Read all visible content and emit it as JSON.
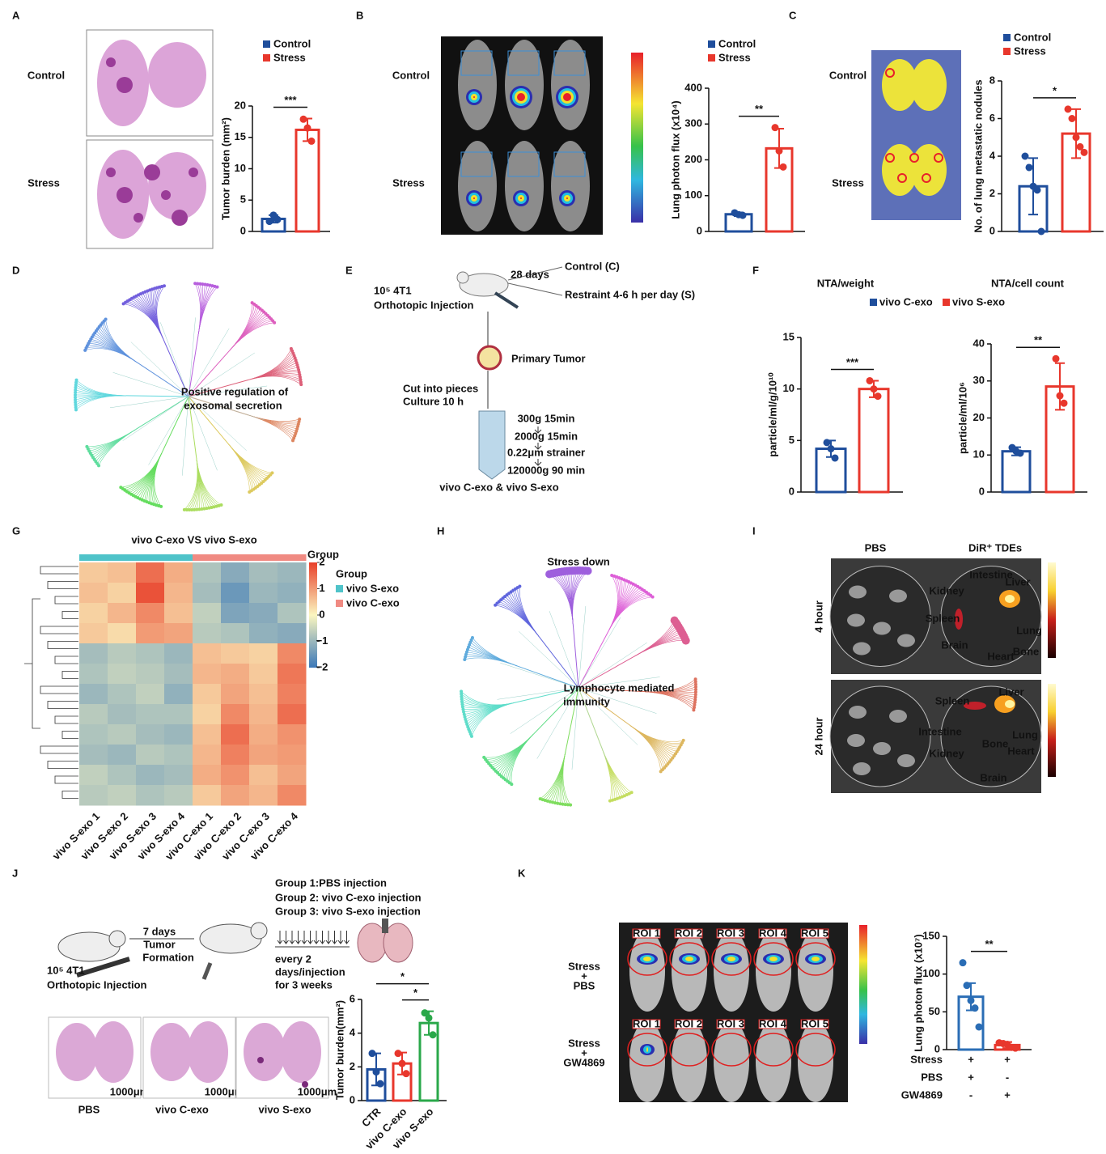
{
  "panel_labels": [
    "A",
    "B",
    "C",
    "D",
    "E",
    "F",
    "G",
    "H",
    "I",
    "J",
    "K"
  ],
  "panel_A": {
    "row_labels": [
      "Control",
      "Stress"
    ]
  },
  "panel_B": {
    "row_labels": [
      "Control",
      "Stress"
    ]
  },
  "panel_C": {
    "row_labels": [
      "Control",
      "Stress"
    ]
  },
  "panel_D": {
    "center_label": [
      "Positive regulation of",
      "exosomal secretion"
    ]
  },
  "panel_E": {
    "injection": [
      "10⁵ 4T1",
      "Orthotopic Injection"
    ],
    "duration": "28 days",
    "arms": [
      "Control (C)",
      "Restraint 4-6 h per day (S)"
    ],
    "tumor": "Primary Tumor",
    "culture": [
      "Cut into pieces",
      "Culture 10 h"
    ],
    "steps": [
      "300g 15min",
      "2000g 15min",
      "0.22μm strainer",
      "120000g 90 min"
    ],
    "product": "vivo C-exo & vivo S-exo"
  },
  "panel_F": {
    "legend": [
      "vivo C-exo",
      "vivo S-exo"
    ]
  },
  "panel_H": {
    "title": "Stress down",
    "center_label": [
      "Lymphocyte mediated",
      "immunity"
    ]
  },
  "panel_I": {
    "columns": [
      "PBS",
      "DiR⁺ TDEs"
    ],
    "rows": [
      "4 hour",
      "24 hour"
    ],
    "organs": [
      [
        "Intestine",
        "Liver",
        "Kidney",
        "Spleen",
        "Lung",
        "Brain",
        "Bone",
        "Heart"
      ],
      [
        "Spleen",
        "Liver",
        "Intestine",
        "Bone",
        "Lung",
        "Heart",
        "Kidney",
        "Brain"
      ]
    ]
  },
  "panel_J": {
    "timeline": "7 days",
    "formation": [
      "Tumor",
      "Formation"
    ],
    "injection": [
      "10⁵ 4T1",
      "Orthotopic Injection"
    ],
    "groups": [
      "Group 1:PBS injection",
      "Group 2: vivo C-exo injection",
      "Group 3: vivo S-exo injection"
    ],
    "schedule": [
      "every 2",
      "days/injection",
      "for 3 weeks"
    ],
    "images": [
      "PBS",
      "vivo C-exo",
      "vivo S-exo"
    ],
    "scale_bar": "1000μm"
  },
  "panel_K": {
    "rows": [
      [
        "Stress",
        "+",
        "PBS"
      ],
      [
        "Stress",
        "+",
        "GW4869"
      ]
    ],
    "roi_labels": [
      "ROI 1",
      "ROI 2",
      "ROI 3",
      "ROI 4",
      "ROI 5"
    ]
  },
  "chart_data": [
    {
      "type": "bar",
      "ylabel": "Tumor burden (mm²)",
      "ylim": [
        0,
        20
      ],
      "yticks": [
        0,
        5,
        10,
        15,
        20
      ],
      "series": [
        {
          "name": "Control",
          "color": "#1f4e9c",
          "values": [
            2.0
          ],
          "errors": [
            0.6
          ],
          "points": [
            [
              1.6,
              2.6,
              1.9
            ]
          ]
        },
        {
          "name": "Stress",
          "color": "#e8372c",
          "values": [
            16.2
          ],
          "errors": [
            1.8
          ],
          "points": [
            [
              17.9,
              16.5,
              14.4
            ]
          ]
        }
      ],
      "significance": [
        "***"
      ]
    },
    {
      "type": "bar",
      "ylabel": "Lung photon flux (x10⁴)",
      "ylim": [
        0,
        400
      ],
      "yticks": [
        0,
        100,
        200,
        300,
        400
      ],
      "series": [
        {
          "name": "Control",
          "color": "#1f4e9c",
          "values": [
            48
          ],
          "errors": [
            5
          ],
          "points": [
            [
              52,
              47,
              45
            ]
          ]
        },
        {
          "name": "Stress",
          "color": "#e8372c",
          "values": [
            232
          ],
          "errors": [
            55
          ],
          "points": [
            [
              290,
              225,
              180
            ]
          ]
        }
      ],
      "significance": [
        "**"
      ]
    },
    {
      "type": "bar",
      "ylabel": "No. of lung metastatic nodules",
      "ylim": [
        0,
        8
      ],
      "yticks": [
        0,
        2,
        4,
        6,
        8
      ],
      "series": [
        {
          "name": "Control",
          "color": "#1f4e9c",
          "values": [
            2.4
          ],
          "errors": [
            1.5
          ],
          "points": [
            [
              4.0,
              3.4,
              2.4,
              2.2,
              0
            ]
          ]
        },
        {
          "name": "Stress",
          "color": "#e8372c",
          "values": [
            5.2
          ],
          "errors": [
            1.3
          ],
          "points": [
            [
              6.5,
              6.0,
              5.0,
              4.5,
              4.2
            ]
          ]
        }
      ],
      "significance": [
        "*"
      ]
    },
    {
      "type": "bar",
      "title": "NTA/weight",
      "ylabel": "particle/ml/g/10¹⁰",
      "ylim": [
        0,
        15
      ],
      "yticks": [
        0,
        5,
        10,
        15
      ],
      "series": [
        {
          "color": "#1f4e9c",
          "values": [
            4.2
          ],
          "errors": [
            0.8
          ],
          "points": [
            [
              4.8,
              4.2,
              3.3
            ]
          ]
        },
        {
          "color": "#e8372c",
          "values": [
            10.0
          ],
          "errors": [
            0.8
          ],
          "points": [
            [
              10.8,
              10.0,
              9.3
            ]
          ]
        }
      ],
      "significance": [
        "***"
      ]
    },
    {
      "type": "bar",
      "title": "NTA/cell count",
      "ylabel": "particle/ml/10⁶",
      "ylim": [
        0,
        40
      ],
      "yticks": [
        0,
        10,
        20,
        30,
        40
      ],
      "series": [
        {
          "color": "#1f4e9c",
          "values": [
            11
          ],
          "errors": [
            1.1
          ],
          "points": [
            [
              12,
              11,
              10.5
            ]
          ]
        },
        {
          "color": "#e8372c",
          "values": [
            28.5
          ],
          "errors": [
            6.3
          ],
          "points": [
            [
              36,
              26,
              24
            ]
          ]
        }
      ],
      "significance": [
        "**"
      ]
    },
    {
      "type": "bar",
      "ylabel": "Tumor burden(mm²)",
      "ylim": [
        0,
        6
      ],
      "yticks": [
        0,
        2,
        4,
        6
      ],
      "categories": [
        "CTR",
        "vivo C-exo",
        "vivo S-exo"
      ],
      "values": [
        1.85,
        2.2,
        4.6
      ],
      "errors": [
        0.95,
        0.65,
        0.7
      ],
      "points": [
        [
          2.8,
          1.7,
          1.0
        ],
        [
          2.8,
          2.2,
          1.6
        ],
        [
          5.2,
          4.9,
          3.9
        ]
      ],
      "colors": [
        "#1f4e9c",
        "#e8372c",
        "#2aa84a"
      ],
      "significance": [
        "*",
        "*"
      ]
    },
    {
      "type": "bar",
      "ylabel": "Lung photon flux (x10⁷)",
      "ylim": [
        0,
        150
      ],
      "yticks": [
        0,
        50,
        100,
        150
      ],
      "series": [
        {
          "color": "#2a6db5",
          "values": [
            70
          ],
          "errors": [
            18
          ],
          "points": [
            [
              115,
              85,
              65,
              55,
              30
            ]
          ]
        },
        {
          "color": "#e8372c",
          "values": [
            6
          ],
          "errors": [
            4
          ],
          "points": [
            [
              9,
              8,
              7,
              3,
              2
            ]
          ]
        }
      ],
      "significance": [
        "**"
      ],
      "conditions": [
        {
          "name": "Stress",
          "marks": [
            "+",
            "+"
          ]
        },
        {
          "name": "PBS",
          "marks": [
            "+",
            "-"
          ]
        },
        {
          "name": "GW4869",
          "marks": [
            "-",
            "+"
          ]
        }
      ]
    },
    {
      "type": "heatmap",
      "title": "vivo C-exo VS vivo S-exo",
      "columns": [
        "vivo S-exo 1",
        "vivo S-exo 2",
        "vivo S-exo 3",
        "vivo S-exo 4",
        "vivo C-exo 1",
        "vivo C-exo 2",
        "vivo C-exo 3",
        "vivo C-exo 4"
      ],
      "legend_title": "Group",
      "colorbar_title": "Group",
      "groups": [
        {
          "name": "vivo S-exo",
          "color": "#4fc3c9"
        },
        {
          "name": "vivo C-exo",
          "color": "#f08a82"
        }
      ],
      "clim": [
        -2,
        2
      ],
      "cticks": [
        2,
        1,
        0,
        {
          "value": -1,
          "label": "−1"
        },
        {
          "value": -2,
          "label": "−2"
        }
      ],
      "values": [
        [
          0.5,
          0.6,
          1.5,
          0.8,
          -0.8,
          -1.2,
          -0.9,
          -1.0
        ],
        [
          0.6,
          0.4,
          1.8,
          0.7,
          -0.9,
          -1.5,
          -1.0,
          -1.1
        ],
        [
          0.4,
          0.7,
          1.2,
          0.6,
          -0.6,
          -1.3,
          -1.2,
          -0.8
        ],
        [
          0.5,
          0.3,
          1.0,
          0.9,
          -0.7,
          -0.8,
          -1.1,
          -1.2
        ],
        [
          -0.9,
          -0.7,
          -0.8,
          -1.0,
          0.6,
          0.5,
          0.4,
          1.2
        ],
        [
          -0.8,
          -0.6,
          -0.7,
          -0.9,
          0.7,
          0.8,
          0.5,
          1.4
        ],
        [
          -1.0,
          -0.8,
          -0.6,
          -1.1,
          0.5,
          0.9,
          0.6,
          1.3
        ],
        [
          -0.7,
          -0.9,
          -0.8,
          -0.8,
          0.4,
          1.2,
          0.7,
          1.5
        ],
        [
          -0.8,
          -0.7,
          -0.9,
          -1.0,
          0.6,
          1.5,
          0.8,
          1.1
        ],
        [
          -0.9,
          -1.0,
          -0.7,
          -0.8,
          0.7,
          1.3,
          0.9,
          1.0
        ],
        [
          -0.6,
          -0.8,
          -1.0,
          -0.9,
          0.8,
          1.1,
          0.6,
          0.9
        ],
        [
          -0.7,
          -0.6,
          -0.8,
          -0.7,
          0.5,
          0.9,
          0.7,
          1.2
        ]
      ]
    }
  ]
}
